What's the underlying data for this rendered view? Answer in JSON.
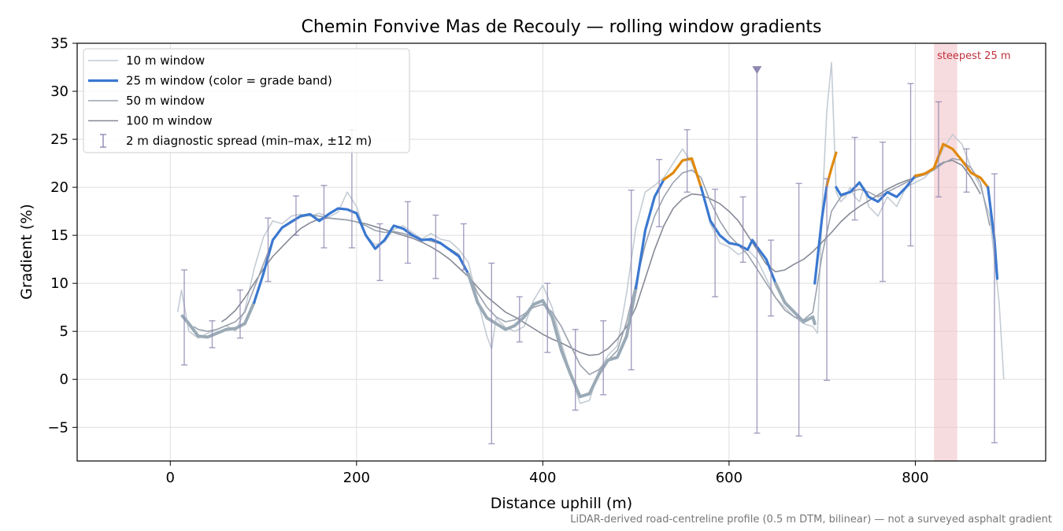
{
  "chart_data": {
    "type": "line",
    "title": "Chemin Fonvive Mas de Recouly — rolling window gradients",
    "xlabel": "Distance uphill (m)",
    "ylabel": "Gradient (%)",
    "footnote": "LiDAR-derived road-centreline profile (0.5 m DTM, bilinear) — not a surveyed asphalt gradient",
    "xlim": [
      -100,
      940
    ],
    "ylim": [
      -8.5,
      35
    ],
    "xticks": [
      0,
      200,
      400,
      600,
      800
    ],
    "yticks": [
      -5,
      0,
      5,
      10,
      15,
      20,
      25,
      30,
      35
    ],
    "grid": true,
    "legend_position": "top-left",
    "colors": {
      "w10": "#c4ccd4",
      "w25_band_low": "#3a78d0",
      "w25_band_high": "#e0890c",
      "w25_band_flat": "#9aaab6",
      "w50": "#9ba2ae",
      "w100": "#868a96",
      "spread": "#9088b2",
      "highlight": "#f2c4ca",
      "highlight_text": "#c0303c"
    },
    "highlight": {
      "x0": 820,
      "x1": 845,
      "label": "steepest 25 m"
    },
    "series": [
      {
        "key": "w10",
        "name": "10 m window",
        "x": [
          8,
          12,
          20,
          30,
          40,
          50,
          60,
          70,
          80,
          90,
          100,
          110,
          120,
          130,
          140,
          150,
          160,
          170,
          180,
          190,
          200,
          210,
          220,
          230,
          240,
          250,
          260,
          270,
          280,
          290,
          300,
          310,
          320,
          330,
          340,
          345,
          350,
          360,
          370,
          380,
          390,
          400,
          410,
          420,
          430,
          440,
          450,
          460,
          470,
          480,
          490,
          500,
          510,
          520,
          530,
          540,
          550,
          560,
          570,
          580,
          590,
          600,
          610,
          620,
          630,
          640,
          650,
          660,
          670,
          680,
          690,
          695,
          700,
          705,
          710,
          715,
          720,
          725,
          730,
          735,
          740,
          745,
          750,
          760,
          770,
          780,
          790,
          800,
          810,
          820,
          830,
          840,
          850,
          860,
          870,
          880,
          890,
          895
        ],
        "y": [
          7.0,
          9.3,
          5.0,
          4.3,
          4.8,
          5.2,
          5.6,
          5.0,
          7.2,
          11.5,
          14.8,
          16.5,
          16.2,
          17.0,
          17.2,
          17.0,
          17.3,
          16.9,
          17.4,
          19.5,
          18.0,
          15.0,
          14.0,
          14.3,
          15.6,
          16.0,
          15.3,
          14.6,
          15.2,
          14.6,
          14.4,
          13.5,
          12.2,
          8.2,
          4.5,
          3.2,
          6.4,
          5.4,
          5.0,
          5.5,
          8.2,
          9.8,
          7.5,
          3.8,
          0.5,
          -2.5,
          -2.2,
          0.8,
          2.5,
          3.5,
          9.0,
          15.8,
          19.5,
          20.2,
          21.0,
          22.5,
          24.0,
          22.5,
          20.0,
          16.2,
          14.2,
          13.8,
          13.0,
          13.5,
          12.5,
          10.5,
          8.5,
          7.5,
          6.5,
          5.8,
          5.5,
          4.8,
          18.0,
          28.0,
          33.0,
          19.5,
          18.5,
          19.0,
          20.0,
          19.0,
          18.5,
          20.0,
          18.0,
          17.0,
          19.0,
          18.0,
          20.0,
          20.5,
          21.0,
          22.0,
          24.0,
          25.5,
          24.5,
          22.0,
          20.0,
          17.0,
          8.0,
          0.0
        ]
      },
      {
        "key": "w25",
        "name": "25 m window (color = grade band)",
        "segments": [
          {
            "band": "flat",
            "x": [
              13,
              20,
              30,
              40,
              50,
              60,
              70,
              80,
              90
            ],
            "y": [
              6.6,
              5.8,
              4.5,
              4.4,
              4.8,
              5.2,
              5.3,
              5.8,
              8.0
            ]
          },
          {
            "band": "low",
            "x": [
              90,
              100,
              110,
              120,
              130,
              140,
              150,
              160,
              170,
              180,
              190,
              200,
              210,
              220,
              230,
              240,
              250,
              260,
              270,
              280,
              290,
              300,
              310,
              320
            ],
            "y": [
              8.0,
              11.0,
              14.5,
              15.8,
              16.4,
              17.0,
              17.2,
              16.5,
              17.2,
              17.8,
              17.7,
              17.3,
              15.0,
              13.6,
              14.5,
              16.0,
              15.7,
              15.0,
              14.5,
              14.6,
              14.2,
              13.5,
              12.8,
              11.0
            ]
          },
          {
            "band": "flat",
            "x": [
              320,
              330,
              340,
              350,
              360,
              370,
              380,
              390,
              400,
              410,
              420,
              430,
              440,
              450,
              460,
              470,
              480,
              490,
              500
            ],
            "y": [
              11.0,
              8.0,
              6.4,
              5.8,
              5.2,
              5.6,
              6.5,
              7.8,
              8.2,
              6.5,
              3.0,
              0.5,
              -1.8,
              -1.5,
              0.5,
              2.0,
              2.3,
              4.5,
              9.5
            ]
          },
          {
            "band": "low",
            "x": [
              500,
              510,
              520,
              530
            ],
            "y": [
              9.5,
              15.5,
              19.0,
              20.8
            ]
          },
          {
            "band": "high",
            "x": [
              530,
              540,
              550,
              560,
              570
            ],
            "y": [
              20.8,
              21.5,
              22.8,
              23.0,
              20.0
            ]
          },
          {
            "band": "low",
            "x": [
              570,
              580,
              590,
              600,
              610,
              620,
              625,
              630,
              640,
              650
            ],
            "y": [
              20.0,
              16.5,
              15.0,
              14.2,
              14.0,
              13.5,
              14.5,
              13.8,
              12.5,
              10.0
            ]
          },
          {
            "band": "flat",
            "x": [
              650,
              660,
              670,
              680,
              690,
              692
            ],
            "y": [
              10.0,
              8.0,
              7.0,
              6.0,
              6.5,
              5.8
            ]
          },
          {
            "band": "low",
            "x": [
              692,
              700,
              705
            ],
            "y": [
              10.0,
              17.0,
              20.2
            ]
          },
          {
            "band": "high",
            "x": [
              705,
              710,
              715
            ],
            "y": [
              20.2,
              22.0,
              23.6
            ]
          },
          {
            "band": "low",
            "x": [
              715,
              720,
              730,
              740,
              750,
              760,
              770,
              780,
              790,
              800
            ],
            "y": [
              20.0,
              19.2,
              19.5,
              20.5,
              19.0,
              18.5,
              19.5,
              19.0,
              20.0,
              21.2
            ]
          },
          {
            "band": "high",
            "x": [
              800,
              810,
              820,
              830,
              840,
              850,
              860,
              870,
              878
            ],
            "y": [
              21.2,
              21.4,
              22.0,
              24.5,
              24.0,
              22.8,
              21.5,
              21.0,
              20.0
            ]
          },
          {
            "band": "low",
            "x": [
              878,
              885,
              888
            ],
            "y": [
              20.0,
              14.5,
              10.5
            ]
          }
        ]
      },
      {
        "key": "w50",
        "name": "50 m window",
        "x": [
          25,
          30,
          40,
          50,
          60,
          70,
          80,
          90,
          100,
          110,
          120,
          130,
          140,
          150,
          160,
          170,
          180,
          190,
          200,
          210,
          220,
          230,
          240,
          250,
          260,
          270,
          280,
          290,
          300,
          310,
          320,
          330,
          340,
          350,
          360,
          370,
          380,
          390,
          400,
          410,
          420,
          430,
          440,
          450,
          460,
          470,
          480,
          490,
          500,
          510,
          520,
          530,
          540,
          550,
          560,
          570,
          580,
          590,
          600,
          610,
          620,
          630,
          640,
          650,
          660,
          670,
          680,
          690,
          700,
          710,
          720,
          730,
          740,
          750,
          760,
          770,
          780,
          790,
          800,
          810,
          820,
          830,
          840,
          850,
          860,
          870,
          880
        ],
        "y": [
          5.5,
          5.2,
          5.0,
          5.2,
          5.6,
          6.0,
          7.0,
          9.5,
          12.0,
          14.5,
          15.8,
          16.5,
          16.9,
          17.1,
          17.0,
          16.8,
          16.7,
          16.6,
          16.4,
          16.0,
          15.5,
          15.3,
          15.4,
          15.2,
          14.9,
          14.6,
          14.4,
          14.1,
          13.6,
          13.0,
          11.0,
          9.0,
          7.5,
          6.5,
          6.0,
          6.2,
          6.8,
          7.5,
          7.8,
          7.0,
          5.5,
          3.5,
          1.5,
          0.5,
          1.0,
          2.0,
          3.0,
          6.0,
          10.0,
          14.0,
          17.0,
          19.0,
          20.5,
          21.5,
          21.8,
          21.0,
          18.5,
          16.5,
          15.0,
          14.0,
          13.0,
          11.5,
          10.0,
          8.5,
          7.2,
          6.5,
          6.2,
          7.0,
          13.0,
          17.5,
          19.0,
          19.5,
          19.8,
          19.5,
          19.0,
          19.5,
          20.0,
          20.5,
          21.0,
          21.3,
          21.8,
          22.5,
          23.0,
          22.8,
          22.0,
          20.5,
          16.0
        ]
      },
      {
        "key": "w100",
        "name": "100 m window",
        "x": [
          55,
          60,
          70,
          80,
          90,
          100,
          110,
          120,
          130,
          140,
          150,
          160,
          170,
          180,
          190,
          200,
          210,
          220,
          230,
          240,
          250,
          260,
          270,
          280,
          290,
          300,
          310,
          320,
          330,
          340,
          350,
          360,
          370,
          380,
          390,
          400,
          410,
          420,
          430,
          440,
          450,
          460,
          470,
          480,
          490,
          500,
          510,
          520,
          530,
          540,
          550,
          560,
          570,
          580,
          590,
          600,
          610,
          620,
          630,
          640,
          650,
          660,
          670,
          680,
          690,
          700,
          710,
          720,
          730,
          740,
          750,
          760,
          770,
          780,
          790,
          800,
          810,
          820,
          830,
          840,
          850,
          860,
          870
        ],
        "y": [
          6.0,
          6.3,
          7.2,
          8.5,
          10.0,
          11.5,
          12.8,
          13.8,
          14.8,
          15.7,
          16.3,
          16.7,
          16.8,
          16.7,
          16.6,
          16.4,
          16.2,
          15.9,
          15.6,
          15.3,
          15.0,
          14.7,
          14.3,
          13.8,
          13.2,
          12.5,
          11.6,
          10.7,
          9.6,
          8.6,
          7.8,
          7.0,
          6.5,
          5.9,
          5.3,
          4.7,
          4.2,
          3.8,
          3.3,
          2.8,
          2.5,
          2.6,
          3.2,
          4.2,
          5.5,
          7.5,
          10.5,
          13.5,
          16.0,
          17.8,
          18.8,
          19.3,
          19.2,
          18.8,
          18.3,
          17.5,
          16.5,
          15.0,
          13.5,
          12.0,
          11.2,
          11.4,
          12.0,
          12.5,
          13.3,
          14.3,
          15.3,
          16.4,
          17.3,
          18.0,
          18.6,
          19.2,
          19.8,
          20.3,
          20.7,
          21.0,
          21.5,
          22.0,
          22.6,
          22.8,
          22.3,
          21.0,
          19.3
        ]
      }
    ],
    "spread": {
      "name": "2 m diagnostic spread (min–max, ±12 m)",
      "x": [
        15,
        45,
        75,
        105,
        135,
        165,
        195,
        225,
        255,
        285,
        315,
        345,
        375,
        405,
        435,
        465,
        495,
        525,
        555,
        585,
        615,
        630,
        645,
        675,
        705,
        735,
        765,
        795,
        825,
        855,
        885
      ],
      "min": [
        1.5,
        3.3,
        4.3,
        10.2,
        15.0,
        13.7,
        13.7,
        10.3,
        12.1,
        10.5,
        11.4,
        -6.7,
        3.9,
        2.8,
        -3.2,
        -1.6,
        1.0,
        15.9,
        19.5,
        8.6,
        12.2,
        -5.6,
        6.6,
        -5.9,
        -0.1,
        16.6,
        10.2,
        13.9,
        19.0,
        19.5,
        -6.6
      ],
      "max": [
        11.4,
        6.1,
        9.3,
        16.8,
        19.1,
        20.2,
        26.0,
        16.2,
        18.5,
        17.1,
        16.2,
        12.1,
        8.6,
        10.0,
        5.2,
        6.1,
        19.7,
        22.9,
        26.0,
        19.8,
        19.0,
        32.2,
        14.5,
        20.4,
        20.9,
        25.2,
        24.7,
        30.8,
        28.9,
        24.0,
        21.4
      ],
      "capped": [
        630
      ]
    }
  }
}
